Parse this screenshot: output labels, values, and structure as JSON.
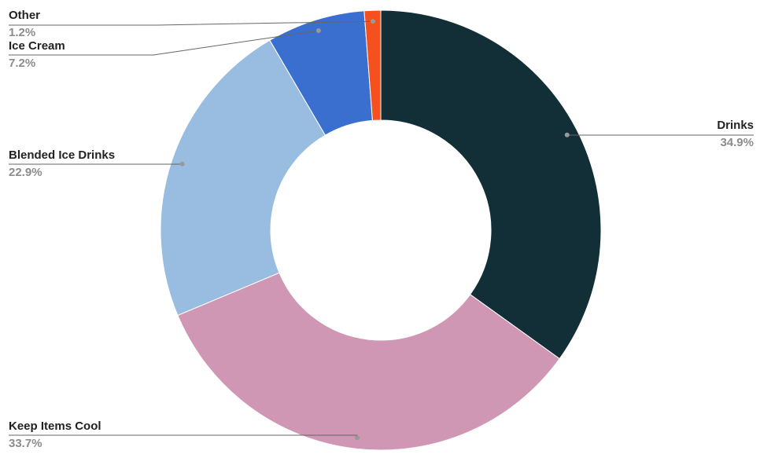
{
  "chart_data": {
    "type": "donut",
    "categories": [
      "Drinks",
      "Keep Items Cool",
      "Blended Ice Drinks",
      "Ice Cream",
      "Other"
    ],
    "values": [
      34.9,
      33.7,
      22.9,
      7.2,
      1.2
    ],
    "value_labels": [
      "34.9%",
      "33.7%",
      "22.9%",
      "7.2%",
      "1.2%"
    ],
    "colors": [
      "#122f38",
      "#cf97b3",
      "#98bde0",
      "#3a6fd0",
      "#f4511e"
    ]
  }
}
